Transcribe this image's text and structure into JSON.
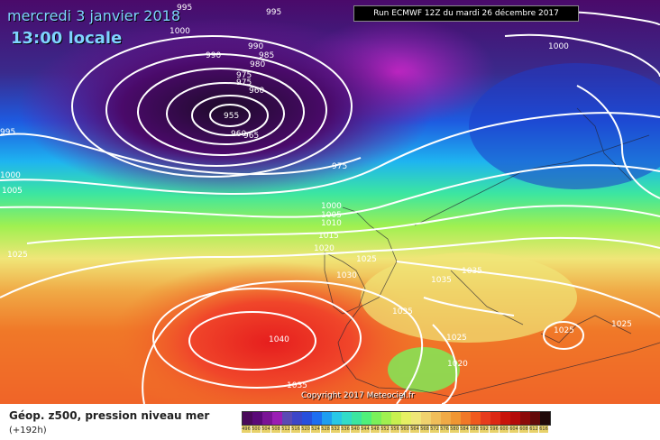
{
  "header": {
    "date": "mercredi 3 janvier 2018",
    "time": "13:00 locale",
    "run": "Run ECMWF 12Z du mardi 26 décembre 2017"
  },
  "copyright": "Copyright 2017 Meteociel.fr",
  "footer": {
    "product": "Géop. z500, pression niveau mer",
    "lead": "(+192h)"
  },
  "pressure_labels": [
    "995",
    "995",
    "1000",
    "990",
    "985",
    "990",
    "975",
    "980",
    "975",
    "960",
    "955",
    "965",
    "960",
    "975",
    "1000",
    "1005",
    "1000",
    "1000",
    "1005",
    "1010",
    "1015",
    "1020",
    "1025",
    "1025",
    "1030",
    "1035",
    "1035",
    "1040",
    "1035",
    "1035",
    "1025",
    "1020",
    "1025",
    "1025",
    "1000",
    "995"
  ],
  "legend": {
    "values": [
      "496",
      "500",
      "504",
      "508",
      "512",
      "516",
      "520",
      "524",
      "528",
      "532",
      "536",
      "540",
      "544",
      "548",
      "552",
      "556",
      "560",
      "564",
      "568",
      "572",
      "576",
      "580",
      "584",
      "588",
      "592",
      "596",
      "600",
      "604",
      "608",
      "612",
      "616"
    ],
    "colors": [
      "#4a0a5a",
      "#5a0a78",
      "#7a1496",
      "#9a1eb4",
      "#5a4ab4",
      "#3c46c8",
      "#2850dc",
      "#1e6ef0",
      "#1e9ef0",
      "#28c8e6",
      "#32dcc8",
      "#3ce6a0",
      "#50f07a",
      "#7af05a",
      "#a0f050",
      "#c8f050",
      "#e6f064",
      "#f0e678",
      "#f0d26e",
      "#f0be5a",
      "#f0aa46",
      "#f09632",
      "#f07828",
      "#f05a1e",
      "#e63c1e",
      "#dc2814",
      "#c8140a",
      "#b40a0a",
      "#8c0a0a",
      "#640a0a",
      "#200a0a"
    ]
  },
  "colors": {
    "low_center": "#1e0a2a",
    "high_center": "#e61e1e",
    "isobar": "#ffffff"
  }
}
